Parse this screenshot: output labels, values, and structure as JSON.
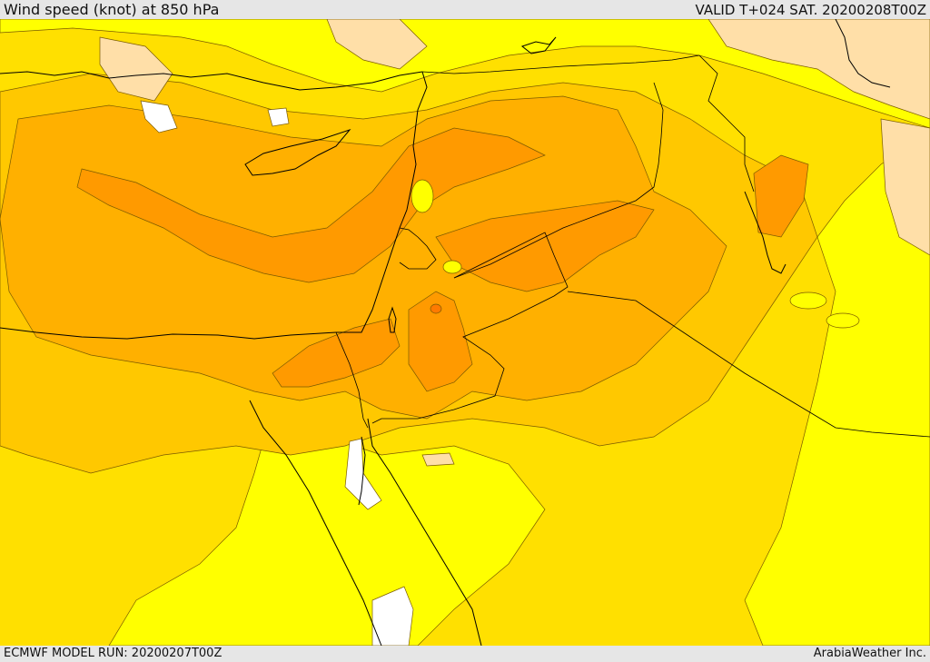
{
  "header": {
    "title": "Wind speed (knot) at 850 hPa",
    "valid": "VALID T+024 SAT. 20200208T00Z"
  },
  "footer": {
    "model_run": "ECMWF MODEL RUN: 20200207T00Z",
    "credit": "ArabiaWeather Inc."
  },
  "map": {
    "variable": "wind speed",
    "unit": "knot",
    "level_hpa": 850,
    "colors": {
      "calm": "#ffffff",
      "light": "#ffdfa8",
      "yellow": "#ffff00",
      "gold": "#ffe000",
      "amber": "#ffc800",
      "orange": "#ffb000",
      "dark_orange": "#ff9a00",
      "red_orange": "#ff7a00",
      "contour": "#7a5a00",
      "border": "#000000"
    }
  }
}
